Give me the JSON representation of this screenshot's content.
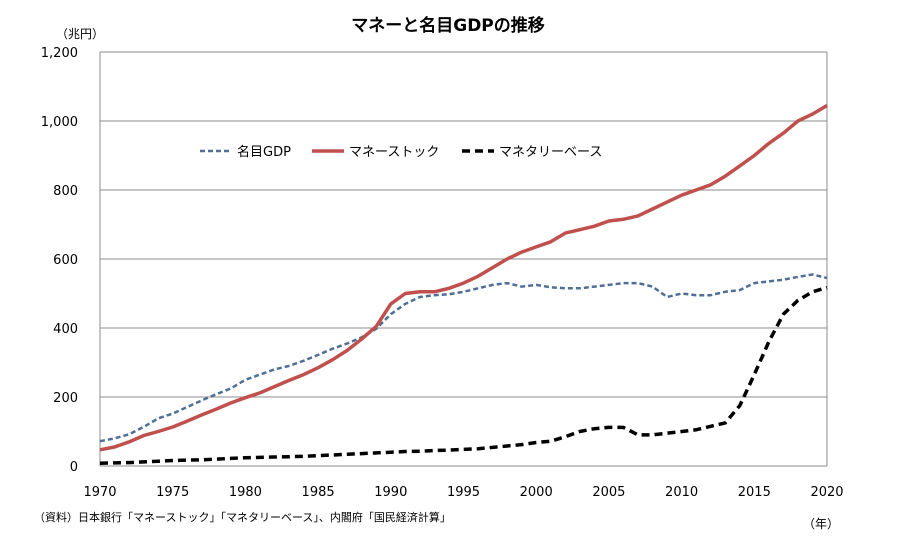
{
  "chart_data": {
    "type": "line",
    "title": "マネーと名目GDPの推移",
    "ylabel": "（兆円）",
    "xlabel": "（年）",
    "source": "（資料）日本銀行「マネーストック」「マネタリーベース」、内閣府「国民経済計算」",
    "xlim": [
      1970,
      2020
    ],
    "ylim": [
      0,
      1200
    ],
    "x_ticks": [
      1970,
      1975,
      1980,
      1985,
      1990,
      1995,
      2000,
      2005,
      2010,
      2015,
      2020
    ],
    "x_tick_labels": [
      "1970",
      "1975",
      "1980",
      "1985",
      "1990",
      "1995",
      "2000",
      "2005",
      "2010",
      "2015",
      "2020"
    ],
    "y_ticks": [
      0,
      200,
      400,
      600,
      800,
      1000,
      1200
    ],
    "y_tick_labels": [
      "0",
      "200",
      "400",
      "600",
      "800",
      "1,000",
      "1,200"
    ],
    "grid": "horizontal",
    "legend_placement": "top-center",
    "x": [
      1970,
      1971,
      1972,
      1973,
      1974,
      1975,
      1976,
      1977,
      1978,
      1979,
      1980,
      1981,
      1982,
      1983,
      1984,
      1985,
      1986,
      1987,
      1988,
      1989,
      1990,
      1991,
      1992,
      1993,
      1994,
      1995,
      1996,
      1997,
      1998,
      1999,
      2000,
      2001,
      2002,
      2003,
      2004,
      2005,
      2006,
      2007,
      2008,
      2009,
      2010,
      2011,
      2012,
      2013,
      2014,
      2015,
      2016,
      2017,
      2018,
      2019,
      2020
    ],
    "series": [
      {
        "name": "名目GDP",
        "color": "#4F6F96",
        "style": "dashed",
        "values": [
          72,
          80,
          92,
          113,
          138,
          152,
          171,
          190,
          208,
          225,
          250,
          265,
          280,
          290,
          305,
          322,
          340,
          355,
          373,
          398,
          440,
          470,
          490,
          495,
          498,
          505,
          515,
          525,
          530,
          520,
          525,
          518,
          515,
          515,
          520,
          525,
          530,
          530,
          520,
          490,
          500,
          495,
          495,
          505,
          510,
          530,
          535,
          540,
          548,
          555,
          545
        ]
      },
      {
        "name": "マネーストック",
        "color": "#C0504D",
        "style": "solid",
        "values": [
          47,
          55,
          70,
          88,
          100,
          113,
          130,
          148,
          165,
          183,
          198,
          212,
          230,
          248,
          265,
          285,
          308,
          335,
          368,
          405,
          470,
          500,
          505,
          505,
          515,
          530,
          550,
          575,
          600,
          620,
          635,
          650,
          675,
          685,
          695,
          710,
          715,
          725,
          745,
          765,
          785,
          800,
          815,
          840,
          870,
          900,
          935,
          965,
          1000,
          1020,
          1045
        ]
      },
      {
        "name": "マネタリーベース",
        "color": "#000000",
        "style": "dashed-bold",
        "values": [
          8,
          9,
          10,
          12,
          14,
          16,
          17,
          18,
          20,
          22,
          24,
          25,
          26,
          27,
          28,
          30,
          32,
          34,
          36,
          38,
          40,
          42,
          43,
          45,
          46,
          48,
          50,
          54,
          58,
          62,
          68,
          72,
          85,
          100,
          108,
          112,
          112,
          90,
          90,
          95,
          100,
          105,
          115,
          125,
          175,
          265,
          360,
          440,
          480,
          505,
          517
        ]
      }
    ]
  }
}
